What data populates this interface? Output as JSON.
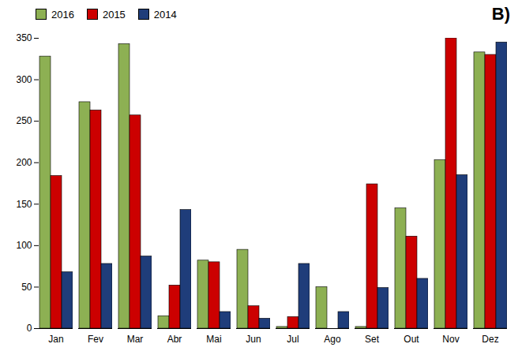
{
  "chart_data": {
    "type": "bar",
    "categories": [
      "Jan",
      "Fev",
      "Mar",
      "Abr",
      "Mai",
      "Jun",
      "Jul",
      "Ago",
      "Set",
      "Out",
      "Nov",
      "Dez"
    ],
    "series": [
      {
        "name": "2016",
        "color": "#8db053",
        "values": [
          328,
          273,
          343,
          15,
          82,
          95,
          2,
          50,
          2,
          145,
          203,
          333
        ]
      },
      {
        "name": "2015",
        "color": "#cc0000",
        "values": [
          184,
          263,
          257,
          52,
          80,
          27,
          14,
          0,
          174,
          111,
          350,
          330
        ]
      },
      {
        "name": "2014",
        "color": "#1f3d7a",
        "values": [
          68,
          78,
          87,
          143,
          20,
          12,
          78,
          20,
          49,
          60,
          185,
          345
        ]
      }
    ],
    "ylim": [
      0,
      350
    ],
    "yticks": [
      0,
      50,
      100,
      150,
      200,
      250,
      300,
      350
    ],
    "grid": false,
    "legend": "upper left",
    "annotations": [
      "B)"
    ]
  }
}
